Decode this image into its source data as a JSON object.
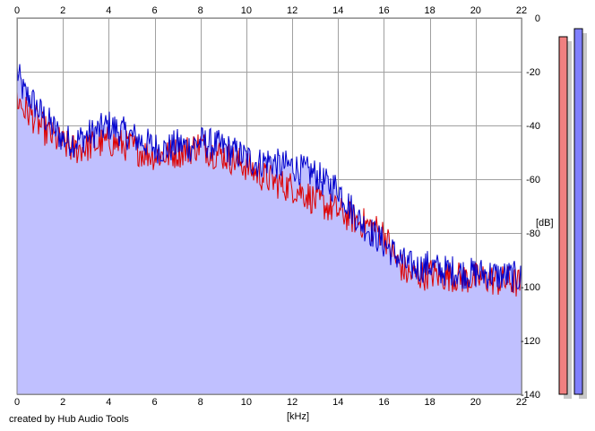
{
  "chart_data": {
    "type": "area",
    "xlabel": "[kHz]",
    "ylabel": "[dB]",
    "xlim": [
      0,
      22
    ],
    "ylim": [
      -140,
      0
    ],
    "x_ticks": [
      "0",
      "2",
      "4",
      "6",
      "8",
      "10",
      "12",
      "14",
      "16",
      "18",
      "20",
      "22"
    ],
    "y_ticks": [
      "0",
      "-20",
      "-40",
      "-60",
      "-80",
      "-100",
      "-120",
      "-140"
    ],
    "grid": true,
    "series": [
      {
        "color": "#0000cc",
        "x": [
          0,
          0.3,
          0.6,
          1,
          1.5,
          2,
          2.5,
          3,
          3.5,
          4,
          4.5,
          5,
          5.5,
          6,
          6.5,
          7,
          7.5,
          8,
          8.5,
          9,
          9.5,
          10,
          10.5,
          11,
          11.5,
          12,
          12.5,
          13,
          13.5,
          14,
          14.5,
          15,
          15.5,
          16,
          16.5,
          17,
          17.5,
          18,
          18.5,
          19,
          19.5,
          20,
          20.5,
          21,
          21.5,
          22
        ],
        "values": [
          -20,
          -28,
          -30,
          -35,
          -40,
          -45,
          -46,
          -44,
          -42,
          -40,
          -42,
          -44,
          -46,
          -48,
          -49,
          -47,
          -48,
          -46,
          -47,
          -48,
          -50,
          -52,
          -54,
          -53,
          -55,
          -55,
          -57,
          -58,
          -62,
          -63,
          -70,
          -76,
          -80,
          -84,
          -88,
          -92,
          -93,
          -92,
          -94,
          -94,
          -95,
          -95,
          -95,
          -96,
          -96,
          -97
        ]
      },
      {
        "color": "#dd0000",
        "x": [
          0,
          0.3,
          0.6,
          1,
          1.5,
          2,
          2.5,
          3,
          3.5,
          4,
          4.5,
          5,
          5.5,
          6,
          6.5,
          7,
          7.5,
          8,
          8.5,
          9,
          9.5,
          10,
          10.5,
          11,
          11.5,
          12,
          12.5,
          13,
          13.5,
          14,
          14.5,
          15,
          15.5,
          16,
          16.5,
          17,
          17.5,
          18,
          18.5,
          19,
          19.5,
          20,
          20.5,
          21,
          21.5,
          22
        ],
        "values": [
          -30,
          -34,
          -36,
          -40,
          -44,
          -47,
          -49,
          -48,
          -47,
          -46,
          -47,
          -48,
          -50,
          -51,
          -51,
          -50,
          -49,
          -47,
          -50,
          -51,
          -53,
          -55,
          -58,
          -60,
          -62,
          -63,
          -65,
          -68,
          -70,
          -72,
          -74,
          -76,
          -78,
          -80,
          -90,
          -95,
          -96,
          -95,
          -96,
          -96,
          -97,
          -97,
          -97,
          -98,
          -98,
          -99
        ]
      }
    ],
    "fill_color": "#c0c0ff",
    "meters": [
      {
        "color": "#f08080",
        "level_db": -7
      },
      {
        "color": "#8080ff",
        "level_db": -4
      }
    ]
  },
  "footer": {
    "credit": "created by Hub Audio Tools"
  }
}
